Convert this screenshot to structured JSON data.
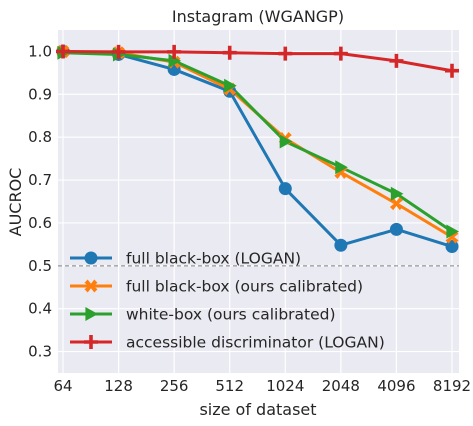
{
  "chart_data": {
    "type": "line",
    "title": "Instagram (WGANGP)",
    "xlabel": "size of dataset",
    "ylabel": "AUCROC",
    "x_scale": "log2",
    "categories": [
      "64",
      "128",
      "256",
      "512",
      "1024",
      "2048",
      "4096",
      "8192"
    ],
    "ylim": [
      0.25,
      1.05
    ],
    "yticks": [
      "0.3",
      "0.4",
      "0.5",
      "0.6",
      "0.7",
      "0.8",
      "0.9",
      "1.0"
    ],
    "grid": true,
    "background": "#eaeaf2",
    "legend_position": "lower-left",
    "reference_line": {
      "y": 0.5,
      "style": "dashed",
      "color": "#808080"
    },
    "series": [
      {
        "name": "full black-box (LOGAN)",
        "color": "#1f77b4",
        "marker": "circle",
        "values": [
          1.0,
          0.993,
          0.958,
          0.907,
          0.68,
          0.548,
          0.585,
          0.545
        ]
      },
      {
        "name": "full black-box (ours calibrated)",
        "color": "#ff7f0e",
        "marker": "x",
        "values": [
          1.0,
          0.997,
          0.975,
          0.912,
          0.797,
          0.718,
          0.645,
          0.567
        ]
      },
      {
        "name": "white-box (ours calibrated)",
        "color": "#2ca02c",
        "marker": "triangle-right",
        "values": [
          0.997,
          0.993,
          0.978,
          0.92,
          0.79,
          0.73,
          0.668,
          0.58
        ]
      },
      {
        "name": "accessible discriminator (LOGAN)",
        "color": "#d62728",
        "marker": "plus",
        "values": [
          1.0,
          0.999,
          0.999,
          0.997,
          0.995,
          0.995,
          0.978,
          0.955
        ]
      }
    ]
  }
}
